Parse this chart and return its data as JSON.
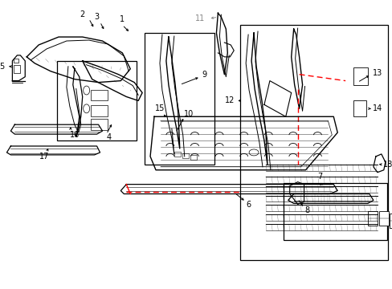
{
  "bg_color": "#ffffff",
  "line_color": "#000000",
  "red_color": "#ff0000",
  "gray_color": "#888888",
  "figsize": [
    4.89,
    3.6
  ],
  "dpi": 100
}
